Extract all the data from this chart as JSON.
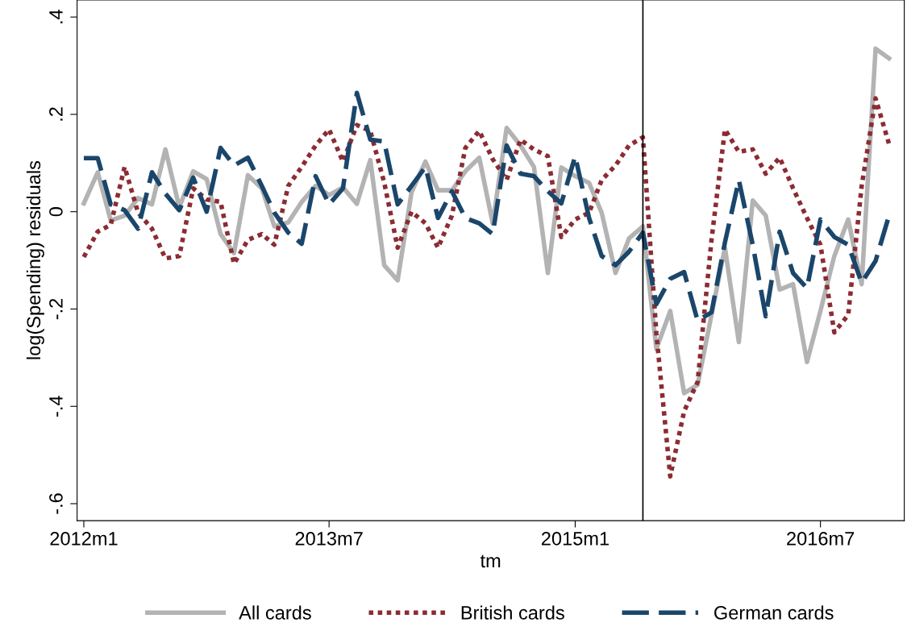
{
  "chart_data": {
    "type": "line",
    "xlabel": "tm",
    "ylabel": "log(Spending) residuals",
    "x": [
      "2012-01",
      "2012-02",
      "2012-03",
      "2012-04",
      "2012-05",
      "2012-06",
      "2012-07",
      "2012-08",
      "2012-09",
      "2012-10",
      "2012-11",
      "2012-12",
      "2013-01",
      "2013-02",
      "2013-03",
      "2013-04",
      "2013-05",
      "2013-06",
      "2013-07",
      "2013-08",
      "2013-09",
      "2013-10",
      "2013-11",
      "2013-12",
      "2014-01",
      "2014-02",
      "2014-03",
      "2014-04",
      "2014-05",
      "2014-06",
      "2014-07",
      "2014-08",
      "2014-09",
      "2014-10",
      "2014-11",
      "2014-12",
      "2015-01",
      "2015-02",
      "2015-03",
      "2015-04",
      "2015-05",
      "2015-06",
      "2015-07",
      "2015-08",
      "2015-09",
      "2015-10",
      "2015-11",
      "2015-12",
      "2016-01",
      "2016-02",
      "2016-03",
      "2016-04",
      "2016-05",
      "2016-06",
      "2016-07",
      "2016-08",
      "2016-09",
      "2016-10",
      "2016-11",
      "2016-12"
    ],
    "series": [
      {
        "name": "All cards",
        "color": "#b3b3b3",
        "line_style": "solid",
        "values": [
          0.017,
          0.081,
          -0.018,
          -0.008,
          0.028,
          0.015,
          0.128,
          0.009,
          0.083,
          0.067,
          -0.046,
          -0.085,
          0.075,
          0.048,
          -0.03,
          -0.022,
          0.02,
          0.053,
          0.034,
          0.05,
          0.016,
          0.106,
          -0.11,
          -0.141,
          0.04,
          0.103,
          0.044,
          0.044,
          0.083,
          0.111,
          -0.024,
          0.172,
          0.136,
          0.092,
          -0.126,
          0.091,
          0.073,
          0.059,
          -0.002,
          -0.126,
          -0.055,
          -0.03,
          -0.282,
          -0.204,
          -0.373,
          -0.356,
          -0.212,
          -0.074,
          -0.268,
          0.023,
          -0.008,
          -0.16,
          -0.149,
          -0.309,
          -0.204,
          -0.091,
          -0.016,
          -0.149,
          0.335,
          0.315
        ]
      },
      {
        "name": "British cards",
        "color": "#8b2c33",
        "line_style": "dotted",
        "values": [
          -0.093,
          -0.041,
          -0.027,
          0.092,
          -0.002,
          -0.035,
          -0.096,
          -0.091,
          0.048,
          0.025,
          0.02,
          -0.107,
          -0.058,
          -0.046,
          -0.068,
          0.053,
          0.092,
          0.136,
          0.169,
          0.103,
          0.178,
          0.166,
          0.06,
          -0.074,
          0.0,
          -0.024,
          -0.074,
          -0.008,
          0.131,
          0.166,
          0.108,
          0.065,
          0.148,
          0.128,
          0.114,
          -0.052,
          -0.016,
          -0.002,
          0.065,
          0.095,
          0.136,
          0.153,
          -0.25,
          -0.544,
          -0.41,
          -0.35,
          -0.058,
          0.169,
          0.123,
          0.128,
          0.078,
          0.111,
          0.048,
          -0.013,
          -0.068,
          -0.248,
          -0.212,
          0.053,
          0.233,
          0.139
        ]
      },
      {
        "name": "German cards",
        "color": "#1a466b",
        "line_style": "dashed",
        "values": [
          0.11,
          0.11,
          0.015,
          0.003,
          -0.035,
          0.081,
          0.037,
          0.003,
          0.07,
          0.0,
          0.131,
          0.095,
          0.111,
          0.053,
          -0.002,
          -0.043,
          -0.066,
          0.073,
          0.015,
          0.048,
          0.244,
          0.148,
          0.144,
          0.015,
          0.053,
          0.092,
          -0.013,
          0.042,
          -0.013,
          -0.024,
          -0.046,
          0.136,
          0.078,
          0.073,
          0.042,
          0.017,
          0.114,
          -0.013,
          -0.091,
          -0.11,
          -0.082,
          -0.043,
          -0.19,
          -0.138,
          -0.124,
          -0.224,
          -0.207,
          -0.063,
          0.065,
          -0.068,
          -0.215,
          -0.041,
          -0.126,
          -0.157,
          -0.016,
          -0.052,
          -0.068,
          -0.146,
          -0.101,
          -0.008
        ]
      }
    ],
    "xlim": [
      "2011-12-17",
      "2017-01-04"
    ],
    "ylim": [
      -0.635,
      0.435
    ],
    "xticks": [
      {
        "value": "2012-01",
        "label": "2012m1"
      },
      {
        "value": "2013-07",
        "label": "2013m7"
      },
      {
        "value": "2015-01",
        "label": "2015m1"
      },
      {
        "value": "2016-07",
        "label": "2016m7"
      }
    ],
    "yticks": [
      {
        "value": -0.6,
        "label": "-.6"
      },
      {
        "value": -0.4,
        "label": "-.4"
      },
      {
        "value": -0.2,
        "label": "-.2"
      },
      {
        "value": 0,
        "label": "0"
      },
      {
        "value": 0.2,
        "label": ".2"
      },
      {
        "value": 0.4,
        "label": ".4"
      }
    ],
    "ref_lines": [
      {
        "axis": "x",
        "value": "2015-06",
        "label": null,
        "color": "#000000"
      }
    ],
    "grid": false,
    "legend": "bottom"
  }
}
